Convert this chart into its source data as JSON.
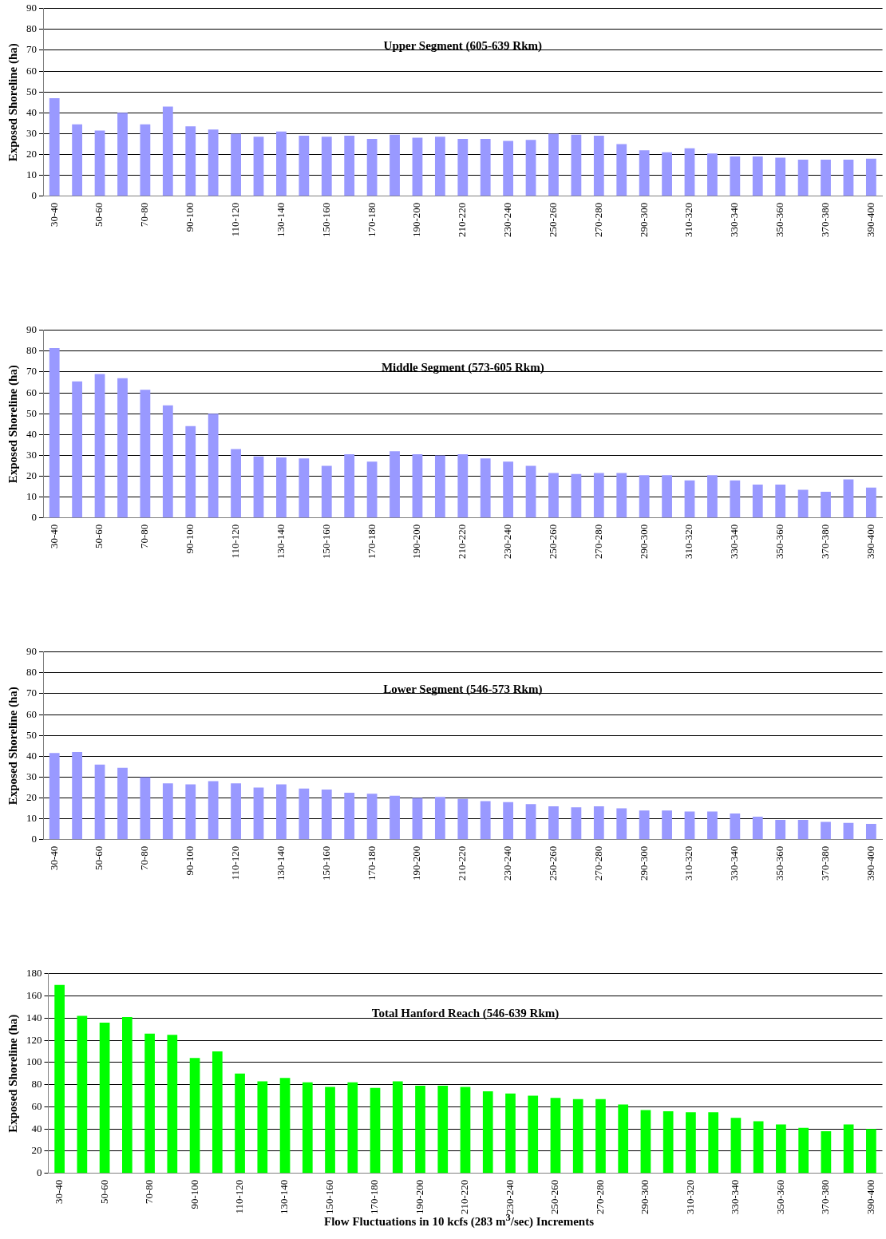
{
  "chart_data": [
    {
      "type": "bar",
      "title": "Upper Segment (605-639 Rkm)",
      "ylabel": "Exposed Shoreline (ha)",
      "categories": [
        "30-40",
        null,
        "50-60",
        null,
        "70-80",
        null,
        "90-100",
        null,
        "110-120",
        null,
        "130-140",
        null,
        "150-160",
        null,
        "170-180",
        null,
        "190-200",
        null,
        "210-220",
        null,
        "230-240",
        null,
        "250-260",
        null,
        "270-280",
        null,
        "290-300",
        null,
        "310-320",
        null,
        "330-340",
        null,
        "350-360",
        null,
        "370-380",
        null,
        "390-400"
      ],
      "color": "#9999ff",
      "values": [
        47,
        34.5,
        31.5,
        40,
        34.5,
        43,
        33.5,
        32,
        30,
        28.5,
        31,
        29,
        28.5,
        29,
        27.5,
        29.5,
        28,
        28.5,
        27.5,
        27.5,
        26.5,
        27,
        30,
        29.5,
        29,
        25,
        22,
        21,
        23,
        20.5,
        19,
        19,
        18.5,
        17.5,
        17.5,
        17.5,
        18
      ],
      "ylim": [
        0,
        90
      ],
      "yticks": [
        0,
        10,
        20,
        30,
        40,
        50,
        60,
        70,
        80,
        90
      ],
      "grid": "y"
    },
    {
      "type": "bar",
      "title": "Middle Segment (573-605 Rkm)",
      "ylabel": "Exposed Shoreline (ha)",
      "categories": [
        "30-40",
        null,
        "50-60",
        null,
        "70-80",
        null,
        "90-100",
        null,
        "110-120",
        null,
        "130-140",
        null,
        "150-160",
        null,
        "170-180",
        null,
        "190-200",
        null,
        "210-220",
        null,
        "230-240",
        null,
        "250-260",
        null,
        "270-280",
        null,
        "290-300",
        null,
        "310-320",
        null,
        "330-340",
        null,
        "350-360",
        null,
        "370-380",
        null,
        "390-400"
      ],
      "color": "#9999ff",
      "values": [
        81.5,
        65.5,
        69,
        67,
        61.5,
        54,
        44,
        50,
        33,
        29.5,
        29,
        28.5,
        25,
        30.5,
        27,
        32,
        30.5,
        30,
        30.5,
        28.5,
        27,
        25,
        21.5,
        21,
        21.5,
        21.5,
        20.5,
        20.5,
        18,
        20.5,
        18,
        16,
        16,
        13.5,
        12.5,
        18.5,
        14.5
      ],
      "ylim": [
        0,
        90
      ],
      "yticks": [
        0,
        10,
        20,
        30,
        40,
        50,
        60,
        70,
        80,
        90
      ],
      "grid": "y"
    },
    {
      "type": "bar",
      "title": "Lower Segment (546-573 Rkm)",
      "ylabel": "Exposed Shoreline (ha)",
      "categories": [
        "30-40",
        null,
        "50-60",
        null,
        "70-80",
        null,
        "90-100",
        null,
        "110-120",
        null,
        "130-140",
        null,
        "150-160",
        null,
        "170-180",
        null,
        "190-200",
        null,
        "210-220",
        null,
        "230-240",
        null,
        "250-260",
        null,
        "270-280",
        null,
        "290-300",
        null,
        "310-320",
        null,
        "330-340",
        null,
        "350-360",
        null,
        "370-380",
        null,
        "390-400"
      ],
      "color": "#9999ff",
      "values": [
        41.5,
        42,
        36,
        34.5,
        30,
        27,
        26.5,
        28,
        27,
        25,
        26.5,
        24.5,
        24,
        22.5,
        22,
        21,
        20,
        20.5,
        19.5,
        18.5,
        18,
        17,
        16,
        15.5,
        16,
        15,
        14,
        14,
        13.5,
        13.5,
        12.5,
        11,
        9.5,
        9.5,
        8.5,
        8,
        7.5
      ],
      "ylim": [
        0,
        90
      ],
      "yticks": [
        0,
        10,
        20,
        30,
        40,
        50,
        60,
        70,
        80,
        90
      ],
      "grid": "y"
    },
    {
      "type": "bar",
      "title": "Total Hanford Reach (546-639 Rkm)",
      "ylabel": "Exposed Shoreline (ha)",
      "xlabel": "Flow Fluctuations in 10 kcfs (283 m$^{3}$/sec) Increments",
      "categories": [
        "30-40",
        null,
        "50-60",
        null,
        "70-80",
        null,
        "90-100",
        null,
        "110-120",
        null,
        "130-140",
        null,
        "150-160",
        null,
        "170-180",
        null,
        "190-200",
        null,
        "210-220",
        null,
        "230-240",
        null,
        "250-260",
        null,
        "270-280",
        null,
        "290-300",
        null,
        "310-320",
        null,
        "330-340",
        null,
        "350-360",
        null,
        "370-380",
        null,
        "390-400"
      ],
      "color": "#00ff00",
      "values": [
        170,
        142,
        136,
        141,
        126,
        125,
        104,
        110,
        90,
        83,
        86,
        82,
        78,
        82,
        77,
        83,
        79,
        79,
        78,
        74,
        72,
        70,
        68,
        67,
        67,
        62,
        57,
        56,
        55,
        55,
        50,
        47,
        44,
        41,
        38,
        44,
        40
      ],
      "ylim": [
        0,
        180
      ],
      "yticks": [
        0,
        20,
        40,
        60,
        80,
        100,
        120,
        140,
        160,
        180
      ],
      "grid": "y"
    }
  ]
}
